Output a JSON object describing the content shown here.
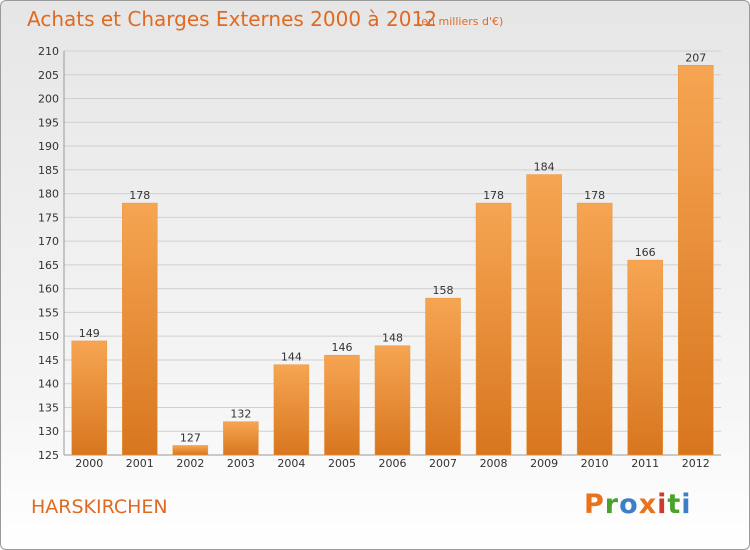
{
  "header": {
    "title": "Achats et Charges Externes 2000 à 2012",
    "unit": "(en milliers d'€)"
  },
  "footer": {
    "place": "HARSKIRCHEN",
    "logo_letters": [
      "P",
      "r",
      "o",
      "x",
      "i",
      "t",
      "i"
    ],
    "logo_colors": [
      "#e8731c",
      "#4aa12b",
      "#3b7fc9",
      "#e8731c",
      "#cf3a2a",
      "#4aa12b",
      "#3b7fc9"
    ]
  },
  "colors": {
    "bar_light": "#f6a552",
    "bar_dark": "#d8761f",
    "text_accent": "#e06a22",
    "grid": "#d0d0d0"
  },
  "chart_data": {
    "type": "bar",
    "title": "Achats et Charges Externes 2000 à 2012",
    "subtitle": "(en milliers d'€)",
    "xlabel": "",
    "ylabel": "",
    "categories": [
      "2000",
      "2001",
      "2002",
      "2003",
      "2004",
      "2005",
      "2006",
      "2007",
      "2008",
      "2009",
      "2010",
      "2011",
      "2012"
    ],
    "values": [
      149,
      178,
      127,
      132,
      144,
      146,
      148,
      158,
      178,
      184,
      178,
      166,
      207
    ],
    "ylim": [
      125,
      210
    ],
    "yticks": [
      125,
      130,
      135,
      140,
      145,
      150,
      155,
      160,
      165,
      170,
      175,
      180,
      185,
      190,
      195,
      200,
      205,
      210
    ],
    "grid": true,
    "legend": "none",
    "data_labels": true
  }
}
